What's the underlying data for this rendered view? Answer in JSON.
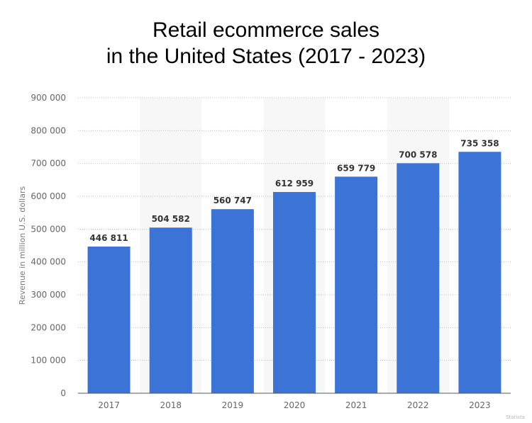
{
  "chart_data": {
    "type": "bar",
    "title_lines": [
      "Retail ecommerce sales",
      "in the United States (2017 - 2023)"
    ],
    "categories": [
      "2017",
      "2018",
      "2019",
      "2020",
      "2021",
      "2022",
      "2023"
    ],
    "values": [
      446811,
      504582,
      560747,
      612959,
      659779,
      700578,
      735358
    ],
    "value_labels": [
      "446 811",
      "504 582",
      "560 747",
      "612 959",
      "659 779",
      "700 578",
      "735 358"
    ],
    "xlabel": "",
    "ylabel": "Revenue in million U.S. dollars",
    "ylim": [
      0,
      900000
    ],
    "yticks": [
      0,
      100000,
      200000,
      300000,
      400000,
      500000,
      600000,
      700000,
      800000,
      900000
    ],
    "ytick_labels": [
      "0",
      "100 000",
      "200 000",
      "300 000",
      "400 000",
      "500 000",
      "600 000",
      "700 000",
      "800 000",
      "900 000"
    ],
    "grid": true,
    "bar_color": "#3b73d7",
    "band_color": "#f7f7f7"
  },
  "watermark": "Statista"
}
